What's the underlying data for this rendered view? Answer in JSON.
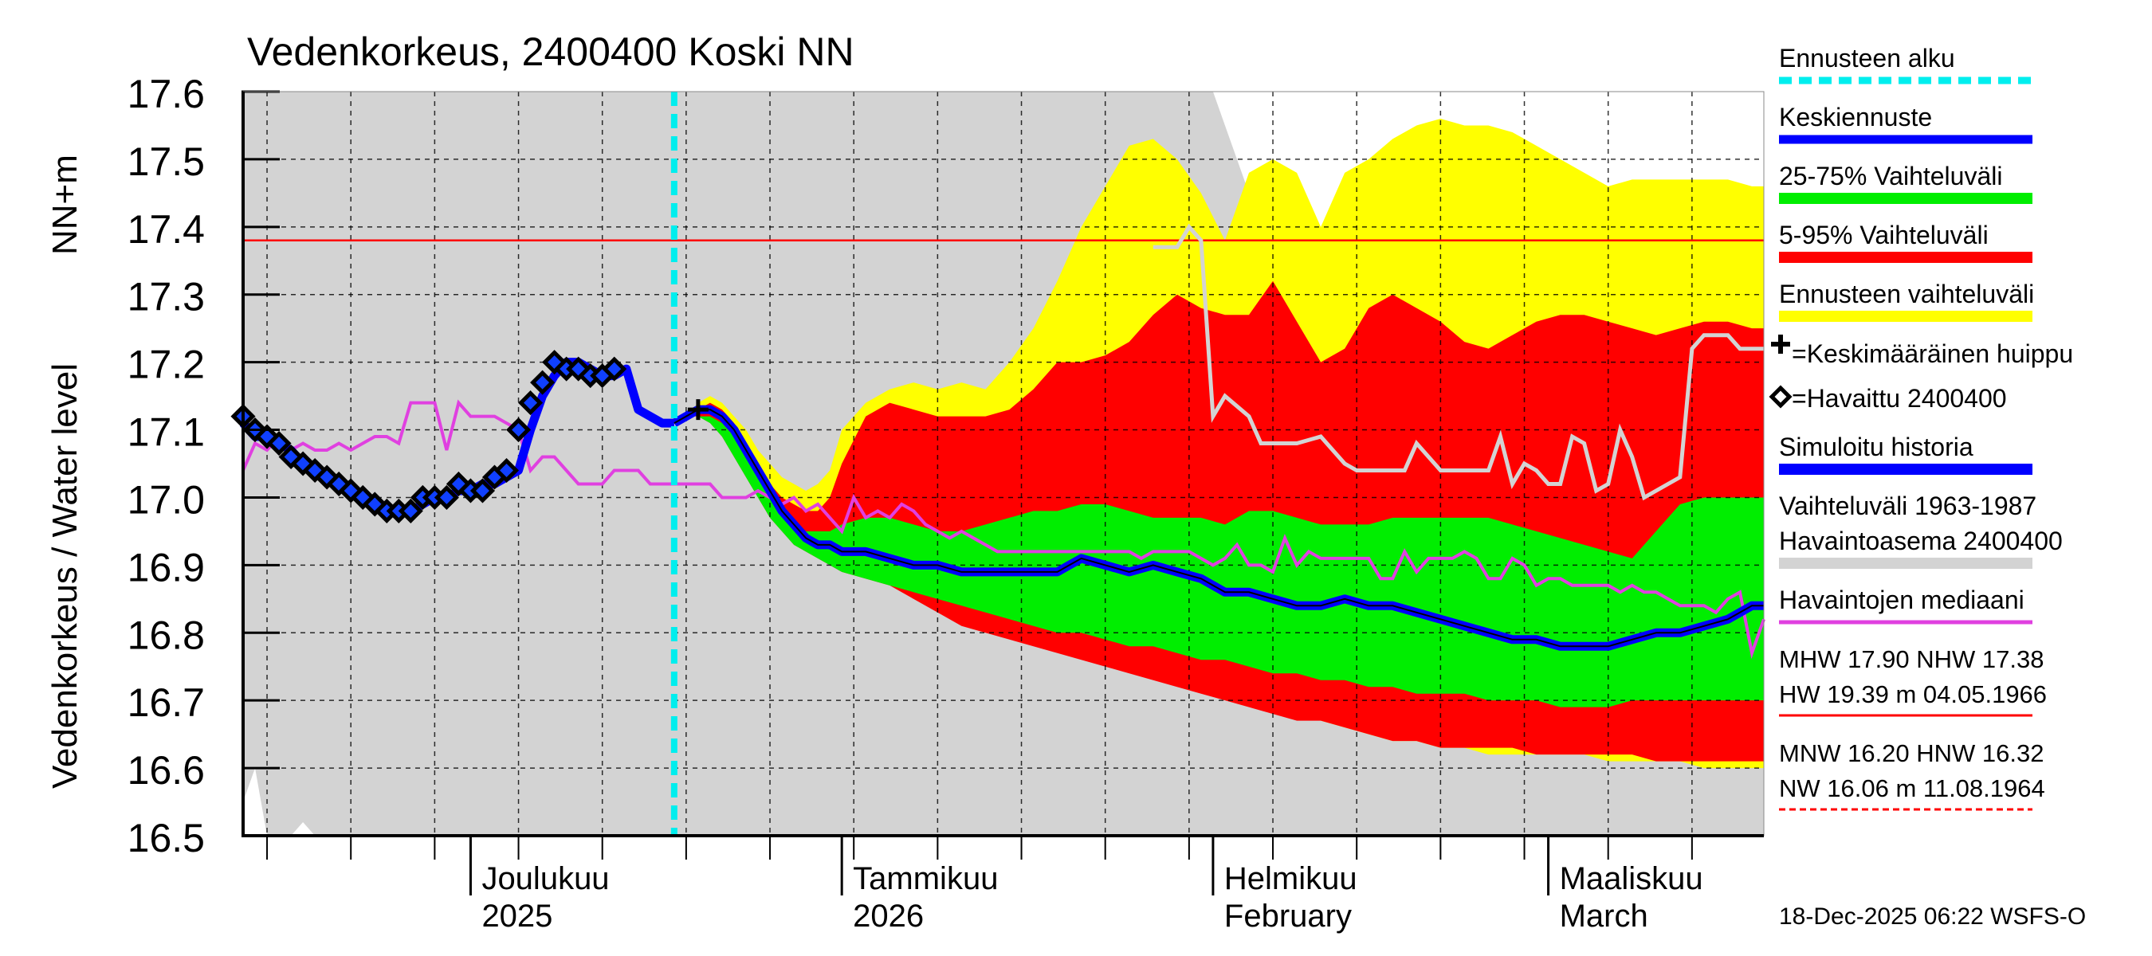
{
  "chart_data": {
    "type": "area",
    "title": "Vedenkorkeus, 2400400 Koski NN",
    "ylabel_left": "Vedenkorkeus / Water level",
    "ylabel_unit": "NN+m",
    "ylim": [
      16.5,
      17.6
    ],
    "y_ticks": [
      "16.5",
      "16.6",
      "16.7",
      "16.8",
      "16.9",
      "17.0",
      "17.1",
      "17.2",
      "17.3",
      "17.4",
      "17.5",
      "17.6"
    ],
    "x_range_days": [
      0,
      127
    ],
    "x_start_date": "2025-11-12",
    "month_labels": [
      {
        "day": 19,
        "line1": "Joulukuu",
        "line2": "2025"
      },
      {
        "day": 50,
        "line1": "Tammikuu",
        "line2": "2026"
      },
      {
        "day": 81,
        "line1": "Helmikuu",
        "line2": "February"
      },
      {
        "day": 109,
        "line1": "Maaliskuu",
        "line2": "March"
      }
    ],
    "forecast_start_day": 36,
    "threshold_line": 17.38,
    "history_band_x": [
      0,
      1,
      2,
      3,
      4,
      5,
      6,
      8,
      10,
      12,
      13,
      14,
      15,
      16,
      17,
      18,
      19,
      20,
      21,
      22,
      23,
      24,
      25,
      26,
      27,
      28,
      29,
      30,
      31,
      32,
      33,
      34,
      35,
      36,
      37,
      38,
      39,
      40,
      41,
      42,
      43,
      44,
      45,
      46,
      47,
      48,
      49,
      50,
      51,
      52,
      53,
      54,
      55,
      56,
      57,
      58,
      59,
      60,
      61,
      62,
      63,
      64,
      65,
      66,
      67,
      68,
      69,
      70,
      71,
      72,
      73,
      74,
      75,
      76,
      77,
      78,
      79,
      80,
      81,
      82,
      83,
      84,
      85,
      86,
      87,
      88,
      89,
      90,
      91,
      92,
      93,
      94,
      95,
      96,
      97,
      98,
      99,
      100,
      101,
      102,
      103,
      104,
      105,
      106,
      107,
      108,
      109,
      110,
      111,
      112,
      113,
      114,
      115,
      116,
      117,
      118,
      119,
      120,
      121,
      122,
      123,
      124,
      125,
      126,
      127
    ],
    "history_band_upper": [
      17.6,
      17.6,
      17.6,
      17.6,
      17.6,
      17.6,
      17.6,
      17.6,
      17.6,
      17.6,
      17.6,
      17.6,
      17.6,
      17.6,
      17.6,
      17.6,
      17.6,
      17.6,
      17.6,
      17.6,
      17.6,
      17.6,
      17.6,
      17.6,
      17.6,
      17.6,
      17.6,
      17.6,
      17.6,
      17.6,
      17.6,
      17.6,
      17.6,
      17.6,
      17.6,
      17.6,
      17.6,
      17.6,
      17.6,
      17.6,
      17.6,
      17.6,
      17.6,
      17.6,
      17.6,
      17.6,
      17.6,
      17.6,
      17.6,
      17.6,
      17.6,
      17.6,
      17.6,
      17.6,
      17.6,
      17.6,
      17.6,
      17.6,
      17.6,
      17.6,
      17.6,
      17.6,
      17.6,
      17.6,
      17.6,
      17.6,
      17.6,
      17.6,
      17.6,
      17.6,
      17.6,
      17.6,
      17.6,
      17.6,
      17.6,
      17.6,
      17.6,
      17.6,
      17.6,
      17.55,
      17.5,
      17.45,
      17.4,
      17.3,
      17.2,
      17.1,
      17.0,
      17.0,
      17.0,
      17.0,
      17.0,
      17.0,
      17.0,
      17.0,
      17.0,
      17.0,
      17.0,
      17.0,
      17.0,
      17.0,
      17.0,
      17.0,
      17.0,
      17.0,
      17.0,
      17.0,
      17.0,
      17.0,
      17.0,
      17.0,
      17.0,
      17.0,
      17.0,
      17.0,
      17.0,
      17.0,
      17.0,
      17.0,
      17.0,
      17.0,
      17.0,
      17.0,
      17.0,
      17.0,
      17.0,
      17.0,
      17.0,
      17.0,
      17.0
    ],
    "history_band_lower": [
      16.55,
      16.6,
      16.5,
      16.5,
      16.5,
      16.52,
      16.5,
      16.5,
      16.5,
      16.5,
      16.5,
      16.5,
      16.5,
      16.5,
      16.5,
      16.5,
      16.5,
      16.5,
      16.5,
      16.5,
      16.5,
      16.5,
      16.5,
      16.5,
      16.5,
      16.5,
      16.5,
      16.5,
      16.5,
      16.5,
      16.5,
      16.5,
      16.5,
      16.5,
      16.5,
      16.5,
      16.5,
      16.5,
      16.5,
      16.5,
      16.5,
      16.5,
      16.5,
      16.5,
      16.5,
      16.5,
      16.5,
      16.5,
      16.5,
      16.5,
      16.5,
      16.5,
      16.5,
      16.5,
      16.5,
      16.5,
      16.5,
      16.5,
      16.5,
      16.5,
      16.5,
      16.5,
      16.5,
      16.5,
      16.5,
      16.5,
      16.5,
      16.5,
      16.5,
      16.5,
      16.5,
      16.5,
      16.5,
      16.5,
      16.5,
      16.5,
      16.5,
      16.5,
      16.5,
      16.5,
      16.5,
      16.5,
      16.5,
      16.5,
      16.5,
      16.5,
      16.5,
      16.5,
      16.5,
      16.5,
      16.5,
      16.5,
      16.5,
      16.5,
      16.5,
      16.5,
      16.5,
      16.5,
      16.5,
      16.5,
      16.5,
      16.5,
      16.5,
      16.5,
      16.5,
      16.5,
      16.5,
      16.5,
      16.5,
      16.5,
      16.5,
      16.5,
      16.5,
      16.5,
      16.5,
      16.5,
      16.5,
      16.5,
      16.5,
      16.5,
      16.5,
      16.5,
      16.5,
      16.5,
      16.5,
      16.5,
      16.5,
      16.5,
      16.5
    ],
    "forecast_x": [
      36,
      37,
      38,
      39,
      40,
      41,
      42,
      43,
      44,
      45,
      46,
      47,
      48,
      49,
      50,
      52,
      54,
      56,
      58,
      60,
      62,
      64,
      66,
      68,
      70,
      72,
      74,
      76,
      78,
      80,
      82,
      84,
      86,
      88,
      90,
      92,
      94,
      96,
      98,
      100,
      102,
      104,
      106,
      108,
      110,
      112,
      114,
      116,
      118,
      120,
      122,
      124,
      126,
      127
    ],
    "band_full_upper": [
      17.11,
      17.12,
      17.14,
      17.15,
      17.14,
      17.12,
      17.1,
      17.07,
      17.05,
      17.03,
      17.02,
      17.01,
      17.02,
      17.04,
      17.1,
      17.14,
      17.16,
      17.17,
      17.16,
      17.17,
      17.16,
      17.2,
      17.25,
      17.32,
      17.4,
      17.46,
      17.52,
      17.53,
      17.5,
      17.45,
      17.38,
      17.48,
      17.5,
      17.48,
      17.4,
      17.48,
      17.5,
      17.53,
      17.55,
      17.56,
      17.55,
      17.55,
      17.54,
      17.52,
      17.5,
      17.48,
      17.46,
      17.47,
      17.47,
      17.47,
      17.47,
      17.47,
      17.46,
      17.46
    ],
    "band_full_lower": [
      17.11,
      17.12,
      17.13,
      17.12,
      17.1,
      17.07,
      17.04,
      17.01,
      16.98,
      16.96,
      16.94,
      16.93,
      16.92,
      16.92,
      16.91,
      16.9,
      16.88,
      16.86,
      16.84,
      16.82,
      16.81,
      16.8,
      16.79,
      16.78,
      16.77,
      16.76,
      16.75,
      16.74,
      16.73,
      16.72,
      16.71,
      16.7,
      16.69,
      16.68,
      16.67,
      16.66,
      16.65,
      16.64,
      16.64,
      16.63,
      16.63,
      16.62,
      16.62,
      16.62,
      16.62,
      16.62,
      16.61,
      16.61,
      16.61,
      16.61,
      16.6,
      16.6,
      16.6,
      16.6
    ],
    "band_5_95_upper": [
      17.11,
      17.12,
      17.13,
      17.14,
      17.13,
      17.11,
      17.08,
      17.05,
      17.02,
      17.0,
      16.99,
      16.98,
      16.98,
      17.0,
      17.05,
      17.12,
      17.14,
      17.13,
      17.12,
      17.12,
      17.12,
      17.13,
      17.16,
      17.2,
      17.2,
      17.21,
      17.23,
      17.27,
      17.3,
      17.28,
      17.27,
      17.27,
      17.32,
      17.26,
      17.2,
      17.22,
      17.28,
      17.3,
      17.28,
      17.26,
      17.23,
      17.22,
      17.24,
      17.26,
      17.27,
      17.27,
      17.26,
      17.25,
      17.24,
      17.25,
      17.26,
      17.26,
      17.25,
      17.25
    ],
    "band_5_95_lower": [
      17.11,
      17.12,
      17.12,
      17.11,
      17.09,
      17.06,
      17.03,
      17.0,
      16.97,
      16.95,
      16.93,
      16.92,
      16.91,
      16.9,
      16.89,
      16.88,
      16.87,
      16.85,
      16.83,
      16.81,
      16.8,
      16.79,
      16.78,
      16.77,
      16.76,
      16.75,
      16.74,
      16.73,
      16.72,
      16.71,
      16.7,
      16.69,
      16.68,
      16.67,
      16.67,
      16.66,
      16.65,
      16.64,
      16.64,
      16.63,
      16.63,
      16.63,
      16.63,
      16.62,
      16.62,
      16.62,
      16.62,
      16.62,
      16.61,
      16.61,
      16.61,
      16.61,
      16.61,
      16.61
    ],
    "band_25_75_upper": [
      17.11,
      17.12,
      17.12,
      17.12,
      17.11,
      17.09,
      17.06,
      17.03,
      17.0,
      16.98,
      16.96,
      16.95,
      16.95,
      16.95,
      16.96,
      16.97,
      16.97,
      16.96,
      16.95,
      16.95,
      16.96,
      16.97,
      16.98,
      16.98,
      16.99,
      16.99,
      16.98,
      16.97,
      16.97,
      16.97,
      16.96,
      16.98,
      16.98,
      16.97,
      16.96,
      16.96,
      16.96,
      16.97,
      16.97,
      16.97,
      16.97,
      16.97,
      16.96,
      16.95,
      16.94,
      16.93,
      16.92,
      16.91,
      16.95,
      16.99,
      17.0,
      17.0,
      17.0,
      17.0
    ],
    "band_25_75_lower": [
      17.11,
      17.12,
      17.12,
      17.11,
      17.09,
      17.06,
      17.03,
      17.0,
      16.97,
      16.95,
      16.93,
      16.92,
      16.91,
      16.9,
      16.89,
      16.88,
      16.87,
      16.86,
      16.85,
      16.84,
      16.83,
      16.82,
      16.81,
      16.8,
      16.8,
      16.79,
      16.78,
      16.78,
      16.77,
      16.76,
      16.76,
      16.75,
      16.74,
      16.74,
      16.73,
      16.73,
      16.72,
      16.72,
      16.71,
      16.71,
      16.71,
      16.7,
      16.7,
      16.7,
      16.69,
      16.69,
      16.69,
      16.7,
      16.7,
      16.7,
      16.7,
      16.7,
      16.7,
      16.7
    ],
    "mean_forecast_x": [
      36,
      37,
      38,
      39,
      40,
      41,
      42,
      43,
      44,
      45,
      46,
      47,
      48,
      49,
      50,
      52,
      54,
      56,
      58,
      60,
      62,
      64,
      66,
      68,
      69,
      70,
      72,
      74,
      76,
      78,
      80,
      82,
      84,
      86,
      88,
      89,
      90,
      92,
      94,
      96,
      98,
      100,
      102,
      104,
      106,
      108,
      110,
      112,
      114,
      116,
      118,
      120,
      122,
      124,
      125,
      126,
      127
    ],
    "mean_forecast_y": [
      17.11,
      17.12,
      17.13,
      17.13,
      17.12,
      17.1,
      17.07,
      17.04,
      17.01,
      16.98,
      16.96,
      16.94,
      16.93,
      16.93,
      16.92,
      16.92,
      16.91,
      16.9,
      16.9,
      16.89,
      16.89,
      16.89,
      16.89,
      16.89,
      16.9,
      16.91,
      16.9,
      16.89,
      16.9,
      16.89,
      16.88,
      16.86,
      16.86,
      16.85,
      16.84,
      16.84,
      16.84,
      16.85,
      16.84,
      16.84,
      16.83,
      16.82,
      16.81,
      16.8,
      16.79,
      16.79,
      16.78,
      16.78,
      16.78,
      16.79,
      16.8,
      16.8,
      16.81,
      16.82,
      16.83,
      16.84,
      16.84
    ],
    "simulated_history_x": [
      0,
      1,
      2,
      3,
      4,
      5,
      6,
      7,
      8,
      9,
      10,
      11,
      12,
      13,
      14,
      15,
      16,
      17,
      18,
      19,
      20,
      21,
      22,
      23,
      24,
      25,
      26,
      27,
      28,
      29,
      30,
      31,
      32,
      33,
      34,
      35,
      36
    ],
    "simulated_history_y": [
      17.11,
      17.09,
      17.09,
      17.08,
      17.07,
      17.05,
      17.04,
      17.03,
      17.02,
      17.01,
      17.0,
      16.99,
      16.98,
      16.98,
      16.98,
      16.99,
      17.0,
      17.0,
      17.01,
      17.01,
      17.02,
      17.02,
      17.03,
      17.04,
      17.1,
      17.15,
      17.18,
      17.2,
      17.2,
      17.19,
      17.18,
      17.18,
      17.19,
      17.13,
      17.12,
      17.11,
      17.11
    ],
    "observed_x": [
      0,
      1,
      2,
      3,
      4,
      5,
      6,
      7,
      8,
      9,
      10,
      11,
      12,
      13,
      14,
      15,
      16,
      17,
      18,
      19,
      20,
      21,
      22,
      23,
      24,
      25,
      26,
      27,
      28,
      29,
      30,
      31
    ],
    "observed_y": [
      17.12,
      17.1,
      17.09,
      17.08,
      17.06,
      17.05,
      17.04,
      17.03,
      17.02,
      17.01,
      17.0,
      16.99,
      16.98,
      16.98,
      16.98,
      17.0,
      17.0,
      17.0,
      17.02,
      17.01,
      17.01,
      17.03,
      17.04,
      17.1,
      17.14,
      17.17,
      17.2,
      17.19,
      17.19,
      17.18,
      17.18,
      17.19
    ],
    "median_x": [
      0,
      1,
      2,
      3,
      4,
      5,
      6,
      7,
      8,
      9,
      10,
      11,
      12,
      13,
      14,
      15,
      16,
      17,
      18,
      19,
      20,
      21,
      22,
      23,
      24,
      25,
      26,
      27,
      28,
      29,
      30,
      31,
      32,
      33,
      34,
      35,
      36,
      37,
      38,
      39,
      40,
      41,
      42,
      43,
      44,
      45,
      46,
      47,
      48,
      49,
      50,
      51,
      52,
      53,
      54,
      55,
      56,
      57,
      58,
      59,
      60,
      61,
      62,
      63,
      64,
      65,
      66,
      67,
      68,
      69,
      70,
      71,
      72,
      73,
      74,
      75,
      76,
      77,
      78,
      79,
      80,
      81,
      82,
      83,
      84,
      85,
      86,
      87,
      88,
      89,
      90,
      91,
      92,
      93,
      94,
      95,
      96,
      97,
      98,
      99,
      100,
      101,
      102,
      103,
      104,
      105,
      106,
      107,
      108,
      109,
      110,
      111,
      112,
      113,
      114,
      115,
      116,
      117,
      118,
      119,
      120,
      121,
      122,
      123,
      124,
      125,
      126,
      127
    ],
    "median_y": [
      17.04,
      17.08,
      17.07,
      17.09,
      17.07,
      17.08,
      17.07,
      17.07,
      17.08,
      17.07,
      17.08,
      17.09,
      17.09,
      17.08,
      17.14,
      17.14,
      17.14,
      17.07,
      17.14,
      17.12,
      17.12,
      17.12,
      17.11,
      17.1,
      17.04,
      17.06,
      17.06,
      17.04,
      17.02,
      17.02,
      17.02,
      17.04,
      17.04,
      17.04,
      17.02,
      17.02,
      17.02,
      17.02,
      17.02,
      17.02,
      17.0,
      17.0,
      17.0,
      17.01,
      17.0,
      16.99,
      17.0,
      16.98,
      16.99,
      16.97,
      16.95,
      17.0,
      16.97,
      16.98,
      16.97,
      16.99,
      16.98,
      16.96,
      16.95,
      16.94,
      16.95,
      16.94,
      16.93,
      16.92,
      16.92,
      16.92,
      16.92,
      16.92,
      16.92,
      16.92,
      16.92,
      16.92,
      16.92,
      16.92,
      16.92,
      16.91,
      16.92,
      16.92,
      16.92,
      16.92,
      16.91,
      16.9,
      16.91,
      16.93,
      16.9,
      16.9,
      16.89,
      16.94,
      16.9,
      16.92,
      16.91,
      16.91,
      16.91,
      16.91,
      16.91,
      16.88,
      16.88,
      16.92,
      16.89,
      16.91,
      16.91,
      16.91,
      16.92,
      16.91,
      16.88,
      16.88,
      16.91,
      16.9,
      16.87,
      16.88,
      16.88,
      16.87,
      16.87,
      16.87,
      16.87,
      16.86,
      16.87,
      16.86,
      16.86,
      16.85,
      16.84,
      16.84,
      16.84,
      16.83,
      16.85,
      16.86,
      16.77,
      16.82
    ],
    "history_line_x": [
      76,
      78,
      79,
      80,
      81,
      82,
      84,
      85,
      86,
      87,
      88,
      90,
      92,
      93,
      94,
      96,
      97,
      98,
      100,
      102,
      103,
      104,
      105,
      106,
      107,
      108,
      109,
      110,
      111,
      112,
      113,
      114,
      115,
      116,
      117,
      118,
      119,
      120,
      121,
      122,
      123,
      124,
      125,
      126,
      127
    ],
    "history_line_y": [
      17.37,
      17.37,
      17.4,
      17.38,
      17.12,
      17.15,
      17.12,
      17.08,
      17.08,
      17.08,
      17.08,
      17.09,
      17.05,
      17.04,
      17.04,
      17.04,
      17.04,
      17.08,
      17.04,
      17.04,
      17.04,
      17.04,
      17.09,
      17.02,
      17.05,
      17.04,
      17.02,
      17.02,
      17.09,
      17.08,
      17.01,
      17.02,
      17.1,
      17.06,
      17.0,
      17.01,
      17.02,
      17.03,
      17.22,
      17.24,
      17.24,
      17.24,
      17.22,
      17.22,
      17.22
    ],
    "peak_marker_x": 38,
    "peak_marker_y": 17.13
  },
  "legend": {
    "forecast_start": "Ennusteen alku",
    "mean_forecast": "Keskiennuste",
    "range_25_75": "25-75% Vaihteluväli",
    "range_5_95": "5-95% Vaihteluväli",
    "forecast_range": "Ennusteen vaihteluväli",
    "mean_peak": "=Keskimääräinen huippu",
    "observed": "=Havaittu 2400400",
    "simulated_history": "Simuloitu historia",
    "history_range_line1": "Vaihteluväli 1963-1987",
    "history_range_line2": "Havaintoasema 2400400",
    "median": "Havaintojen mediaani",
    "stats1a": "MHW  17.90 NHW  17.38",
    "stats1b": "HW  19.39 m 04.05.1966",
    "stats2a": "MNW  16.20 HNW  16.32",
    "stats2b": "NW  16.06 m 11.08.1964"
  },
  "footer": "18-Dec-2025 06:22 WSFS-O",
  "colors": {
    "history_band": "#d3d3d3",
    "band_full": "#ffff00",
    "band_5_95": "#ff0000",
    "band_25_75": "#00ee00",
    "mean": "#0000ff",
    "median": "#e040e0",
    "forecast_start": "#00eeee",
    "threshold": "#ff0000",
    "history_line": "#d3d3d3"
  }
}
